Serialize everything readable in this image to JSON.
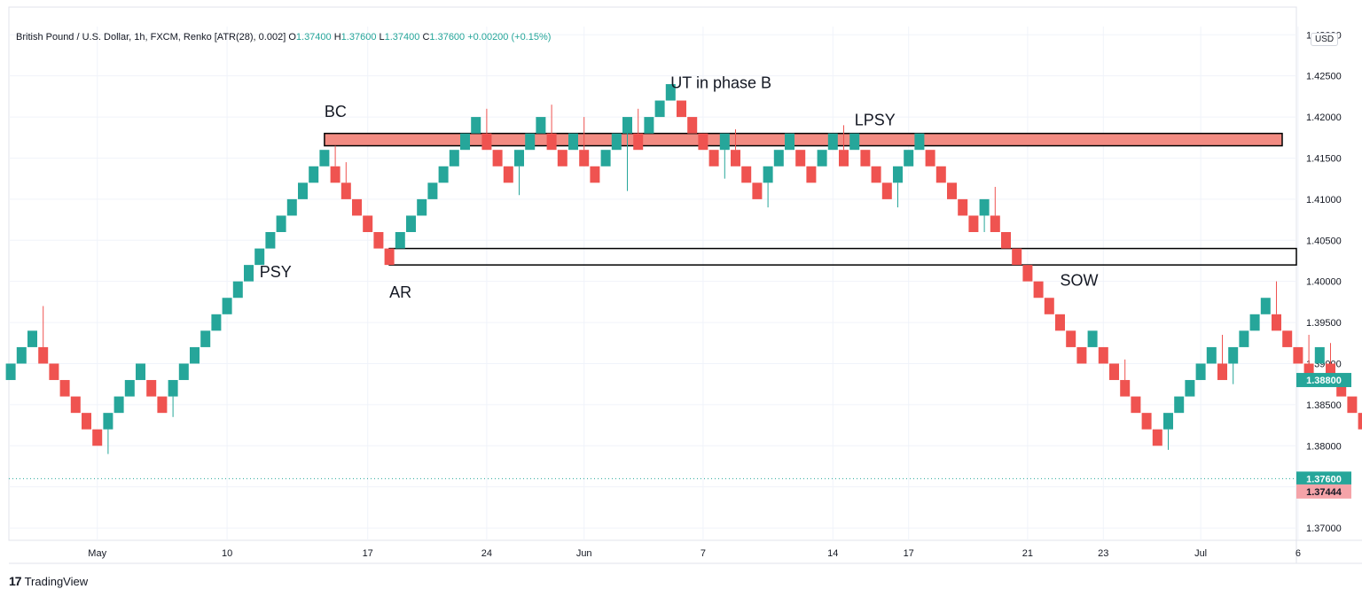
{
  "legend": {
    "symbol": "British Pound / U.S. Dollar, 1h, FXCM, Renko [ATR(28), 0.002]",
    "o_label": "O",
    "o_value": "1.37400",
    "h_label": "H",
    "h_value": "1.37600",
    "l_label": "L",
    "l_value": "1.37400",
    "c_label": "C",
    "c_value": "1.37600",
    "change": "+0.00200 (+0.15%)"
  },
  "currency": "USD",
  "footer": {
    "brand": "TradingView",
    "logo": "17"
  },
  "colors": {
    "up": "#26a69a",
    "down": "#ef5350",
    "zone_fill": "#f28b82",
    "price_tag_green": "#26a69a",
    "price_tag_red": "#f5a3a8",
    "grid": "#f0f3fa"
  },
  "chart_data": {
    "type": "renko",
    "brick_size": 0.002,
    "ylim": [
      1.3685,
      1.431
    ],
    "y_ticks": [
      "1.37000",
      "1.37500",
      "1.38000",
      "1.38500",
      "1.39000",
      "1.39500",
      "1.40000",
      "1.40500",
      "1.41000",
      "1.41500",
      "1.42000",
      "1.42500",
      "1.43000"
    ],
    "x_ticks": [
      "May",
      "10",
      "17",
      "24",
      "Jun",
      "7",
      "14",
      "17",
      "21",
      "23",
      "Jul",
      "6"
    ],
    "bricks": [
      {
        "dir": "up",
        "low": 1.388,
        "high": 1.39
      },
      {
        "dir": "up",
        "low": 1.39,
        "high": 1.392
      },
      {
        "dir": "up",
        "low": 1.392,
        "high": 1.394
      },
      {
        "dir": "down",
        "low": 1.39,
        "high": 1.392,
        "wick_high": 1.397
      },
      {
        "dir": "down",
        "low": 1.388,
        "high": 1.39
      },
      {
        "dir": "down",
        "low": 1.386,
        "high": 1.388
      },
      {
        "dir": "down",
        "low": 1.384,
        "high": 1.386
      },
      {
        "dir": "down",
        "low": 1.382,
        "high": 1.384
      },
      {
        "dir": "down",
        "low": 1.38,
        "high": 1.382
      },
      {
        "dir": "up",
        "low": 1.382,
        "high": 1.384,
        "wick_low": 1.379
      },
      {
        "dir": "up",
        "low": 1.384,
        "high": 1.386
      },
      {
        "dir": "up",
        "low": 1.386,
        "high": 1.388
      },
      {
        "dir": "up",
        "low": 1.388,
        "high": 1.39
      },
      {
        "dir": "down",
        "low": 1.386,
        "high": 1.388
      },
      {
        "dir": "down",
        "low": 1.384,
        "high": 1.386
      },
      {
        "dir": "up",
        "low": 1.386,
        "high": 1.388,
        "wick_low": 1.3835
      },
      {
        "dir": "up",
        "low": 1.388,
        "high": 1.39
      },
      {
        "dir": "up",
        "low": 1.39,
        "high": 1.392
      },
      {
        "dir": "up",
        "low": 1.392,
        "high": 1.394
      },
      {
        "dir": "up",
        "low": 1.394,
        "high": 1.396
      },
      {
        "dir": "up",
        "low": 1.396,
        "high": 1.398
      },
      {
        "dir": "up",
        "low": 1.398,
        "high": 1.4
      },
      {
        "dir": "up",
        "low": 1.4,
        "high": 1.402
      },
      {
        "dir": "up",
        "low": 1.402,
        "high": 1.404
      },
      {
        "dir": "up",
        "low": 1.404,
        "high": 1.406
      },
      {
        "dir": "up",
        "low": 1.406,
        "high": 1.408
      },
      {
        "dir": "up",
        "low": 1.408,
        "high": 1.41
      },
      {
        "dir": "up",
        "low": 1.41,
        "high": 1.412
      },
      {
        "dir": "up",
        "low": 1.412,
        "high": 1.414
      },
      {
        "dir": "up",
        "low": 1.414,
        "high": 1.416
      },
      {
        "dir": "down",
        "low": 1.412,
        "high": 1.414,
        "wick_high": 1.4165
      },
      {
        "dir": "down",
        "low": 1.41,
        "high": 1.412,
        "wick_high": 1.4145
      },
      {
        "dir": "down",
        "low": 1.408,
        "high": 1.41
      },
      {
        "dir": "down",
        "low": 1.406,
        "high": 1.408
      },
      {
        "dir": "down",
        "low": 1.404,
        "high": 1.406
      },
      {
        "dir": "down",
        "low": 1.402,
        "high": 1.404
      },
      {
        "dir": "up",
        "low": 1.404,
        "high": 1.406
      },
      {
        "dir": "up",
        "low": 1.406,
        "high": 1.408
      },
      {
        "dir": "up",
        "low": 1.408,
        "high": 1.41
      },
      {
        "dir": "up",
        "low": 1.41,
        "high": 1.412
      },
      {
        "dir": "up",
        "low": 1.412,
        "high": 1.414
      },
      {
        "dir": "up",
        "low": 1.414,
        "high": 1.416
      },
      {
        "dir": "up",
        "low": 1.416,
        "high": 1.418
      },
      {
        "dir": "up",
        "low": 1.418,
        "high": 1.42
      },
      {
        "dir": "down",
        "low": 1.416,
        "high": 1.418,
        "wick_high": 1.421
      },
      {
        "dir": "down",
        "low": 1.414,
        "high": 1.416
      },
      {
        "dir": "down",
        "low": 1.412,
        "high": 1.414
      },
      {
        "dir": "up",
        "low": 1.414,
        "high": 1.416,
        "wick_low": 1.4105
      },
      {
        "dir": "up",
        "low": 1.416,
        "high": 1.418
      },
      {
        "dir": "up",
        "low": 1.418,
        "high": 1.42
      },
      {
        "dir": "down",
        "low": 1.416,
        "high": 1.418,
        "wick_high": 1.4215
      },
      {
        "dir": "down",
        "low": 1.414,
        "high": 1.416
      },
      {
        "dir": "up",
        "low": 1.416,
        "high": 1.418
      },
      {
        "dir": "down",
        "low": 1.414,
        "high": 1.416,
        "wick_high": 1.42
      },
      {
        "dir": "down",
        "low": 1.412,
        "high": 1.414
      },
      {
        "dir": "up",
        "low": 1.414,
        "high": 1.416
      },
      {
        "dir": "up",
        "low": 1.416,
        "high": 1.418
      },
      {
        "dir": "up",
        "low": 1.418,
        "high": 1.42,
        "wick_low": 1.411
      },
      {
        "dir": "down",
        "low": 1.416,
        "high": 1.418,
        "wick_high": 1.421
      },
      {
        "dir": "up",
        "low": 1.418,
        "high": 1.42
      },
      {
        "dir": "up",
        "low": 1.42,
        "high": 1.422
      },
      {
        "dir": "up",
        "low": 1.422,
        "high": 1.424
      },
      {
        "dir": "down",
        "low": 1.42,
        "high": 1.422
      },
      {
        "dir": "down",
        "low": 1.418,
        "high": 1.42
      },
      {
        "dir": "down",
        "low": 1.416,
        "high": 1.418
      },
      {
        "dir": "down",
        "low": 1.414,
        "high": 1.416
      },
      {
        "dir": "up",
        "low": 1.416,
        "high": 1.418,
        "wick_low": 1.4125
      },
      {
        "dir": "down",
        "low": 1.414,
        "high": 1.416,
        "wick_high": 1.4185
      },
      {
        "dir": "down",
        "low": 1.412,
        "high": 1.414
      },
      {
        "dir": "down",
        "low": 1.41,
        "high": 1.412
      },
      {
        "dir": "up",
        "low": 1.412,
        "high": 1.414,
        "wick_low": 1.409
      },
      {
        "dir": "up",
        "low": 1.414,
        "high": 1.416
      },
      {
        "dir": "up",
        "low": 1.416,
        "high": 1.418
      },
      {
        "dir": "down",
        "low": 1.414,
        "high": 1.416
      },
      {
        "dir": "down",
        "low": 1.412,
        "high": 1.414
      },
      {
        "dir": "up",
        "low": 1.414,
        "high": 1.416
      },
      {
        "dir": "up",
        "low": 1.416,
        "high": 1.418
      },
      {
        "dir": "down",
        "low": 1.414,
        "high": 1.416,
        "wick_high": 1.419
      },
      {
        "dir": "up",
        "low": 1.416,
        "high": 1.418
      },
      {
        "dir": "down",
        "low": 1.414,
        "high": 1.416
      },
      {
        "dir": "down",
        "low": 1.412,
        "high": 1.414
      },
      {
        "dir": "down",
        "low": 1.41,
        "high": 1.412
      },
      {
        "dir": "up",
        "low": 1.412,
        "high": 1.414,
        "wick_low": 1.409
      },
      {
        "dir": "up",
        "low": 1.414,
        "high": 1.416
      },
      {
        "dir": "up",
        "low": 1.416,
        "high": 1.418
      },
      {
        "dir": "down",
        "low": 1.414,
        "high": 1.416
      },
      {
        "dir": "down",
        "low": 1.412,
        "high": 1.414
      },
      {
        "dir": "down",
        "low": 1.41,
        "high": 1.412
      },
      {
        "dir": "down",
        "low": 1.408,
        "high": 1.41
      },
      {
        "dir": "down",
        "low": 1.406,
        "high": 1.408
      },
      {
        "dir": "up",
        "low": 1.408,
        "high": 1.41,
        "wick_low": 1.406
      },
      {
        "dir": "down",
        "low": 1.406,
        "high": 1.408,
        "wick_high": 1.4115
      },
      {
        "dir": "down",
        "low": 1.404,
        "high": 1.406
      },
      {
        "dir": "down",
        "low": 1.402,
        "high": 1.404
      },
      {
        "dir": "down",
        "low": 1.4,
        "high": 1.402
      },
      {
        "dir": "down",
        "low": 1.398,
        "high": 1.4
      },
      {
        "dir": "down",
        "low": 1.396,
        "high": 1.398
      },
      {
        "dir": "down",
        "low": 1.394,
        "high": 1.396
      },
      {
        "dir": "down",
        "low": 1.392,
        "high": 1.394
      },
      {
        "dir": "down",
        "low": 1.39,
        "high": 1.392
      },
      {
        "dir": "up",
        "low": 1.392,
        "high": 1.394
      },
      {
        "dir": "down",
        "low": 1.39,
        "high": 1.392
      },
      {
        "dir": "down",
        "low": 1.388,
        "high": 1.39
      },
      {
        "dir": "down",
        "low": 1.386,
        "high": 1.388,
        "wick_high": 1.3905
      },
      {
        "dir": "down",
        "low": 1.384,
        "high": 1.386
      },
      {
        "dir": "down",
        "low": 1.382,
        "high": 1.384
      },
      {
        "dir": "down",
        "low": 1.38,
        "high": 1.382
      },
      {
        "dir": "up",
        "low": 1.382,
        "high": 1.384,
        "wick_low": 1.3795
      },
      {
        "dir": "up",
        "low": 1.384,
        "high": 1.386
      },
      {
        "dir": "up",
        "low": 1.386,
        "high": 1.388
      },
      {
        "dir": "up",
        "low": 1.388,
        "high": 1.39
      },
      {
        "dir": "up",
        "low": 1.39,
        "high": 1.392
      },
      {
        "dir": "down",
        "low": 1.388,
        "high": 1.39,
        "wick_high": 1.3935
      },
      {
        "dir": "up",
        "low": 1.39,
        "high": 1.392,
        "wick_low": 1.3875
      },
      {
        "dir": "up",
        "low": 1.392,
        "high": 1.394
      },
      {
        "dir": "up",
        "low": 1.394,
        "high": 1.396
      },
      {
        "dir": "up",
        "low": 1.396,
        "high": 1.398
      },
      {
        "dir": "down",
        "low": 1.394,
        "high": 1.396,
        "wick_high": 1.4
      },
      {
        "dir": "down",
        "low": 1.392,
        "high": 1.394
      },
      {
        "dir": "down",
        "low": 1.39,
        "high": 1.392
      },
      {
        "dir": "down",
        "low": 1.388,
        "high": 1.39,
        "wick_high": 1.3935
      },
      {
        "dir": "up",
        "low": 1.39,
        "high": 1.392
      },
      {
        "dir": "down",
        "low": 1.388,
        "high": 1.39,
        "wick_high": 1.3925
      },
      {
        "dir": "down",
        "low": 1.386,
        "high": 1.388
      },
      {
        "dir": "down",
        "low": 1.384,
        "high": 1.386
      },
      {
        "dir": "down",
        "low": 1.382,
        "high": 1.384,
        "wick_high": 1.3855
      },
      {
        "dir": "down",
        "low": 1.38,
        "high": 1.382
      },
      {
        "dir": "down",
        "low": 1.378,
        "high": 1.38
      },
      {
        "dir": "down",
        "low": 1.376,
        "high": 1.378,
        "wick_high": 1.381
      },
      {
        "dir": "down",
        "low": 1.374,
        "high": 1.376
      },
      {
        "dir": "up",
        "low": 1.376,
        "high": 1.378
      },
      {
        "dir": "up",
        "low": 1.378,
        "high": 1.38
      },
      {
        "dir": "up",
        "low": 1.38,
        "high": 1.382
      },
      {
        "dir": "up",
        "low": 1.382,
        "high": 1.384
      },
      {
        "dir": "up",
        "low": 1.384,
        "high": 1.386,
        "wick_low": 1.3835
      },
      {
        "dir": "up",
        "low": 1.386,
        "high": 1.388
      }
    ],
    "zones": [
      {
        "name": "resistance-zone",
        "y_low": 1.4165,
        "y_high": 1.418,
        "from_brick": 29,
        "filled": true
      },
      {
        "name": "support-zone",
        "y_low": 1.402,
        "y_high": 1.404,
        "from_brick": 35,
        "filled": false
      }
    ],
    "annotations": [
      {
        "text": "BC",
        "brick": 29,
        "y": 1.42
      },
      {
        "text": "PSY",
        "brick": 23,
        "y": 1.4005
      },
      {
        "text": "AR",
        "brick": 35,
        "y": 1.398
      },
      {
        "text": "UT in phase B",
        "brick": 61,
        "y": 1.4235
      },
      {
        "text": "LPSY",
        "brick": 78,
        "y": 1.419
      },
      {
        "text": "SOW",
        "brick": 97,
        "y": 1.3995
      }
    ],
    "price_tags": [
      {
        "label": "1.38800",
        "value": 1.388,
        "color": "green"
      },
      {
        "label": "1.37600",
        "value": 1.376,
        "color": "green"
      },
      {
        "label": "1.37444",
        "value": 1.37444,
        "color": "red"
      }
    ],
    "dotted_line_value": 1.376
  }
}
